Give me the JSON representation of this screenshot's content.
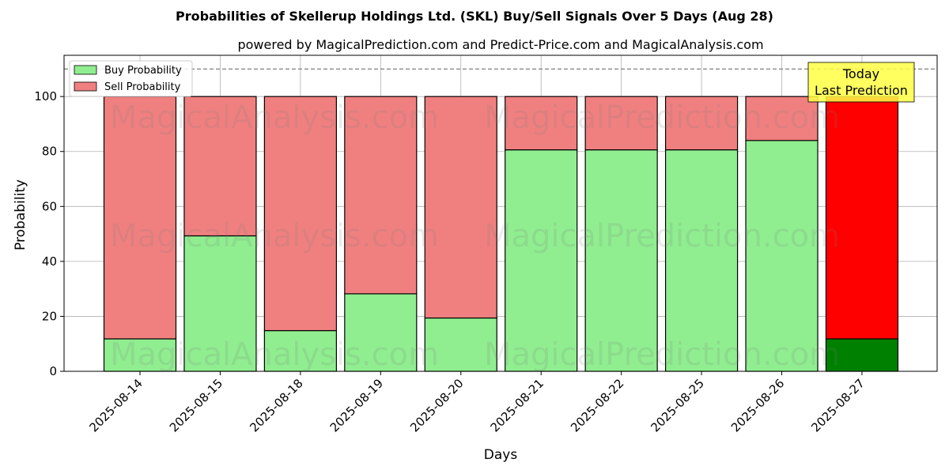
{
  "chart_data": {
    "type": "bar",
    "stacked": true,
    "title": "Probabilities of Skellerup Holdings Ltd. (SKL) Buy/Sell Signals Over 5 Days (Aug 28)",
    "subtitle": "powered by MagicalPrediction.com and Predict-Price.com and MagicalAnalysis.com",
    "xlabel": "Days",
    "ylabel": "Probability",
    "ylim": [
      0,
      115
    ],
    "yticks": [
      0,
      20,
      40,
      60,
      80,
      100
    ],
    "grid": true,
    "legend_position": "top-left",
    "reference_line": 110,
    "categories": [
      "2025-08-14",
      "2025-08-15",
      "2025-08-18",
      "2025-08-19",
      "2025-08-20",
      "2025-08-21",
      "2025-08-22",
      "2025-08-25",
      "2025-08-26",
      "2025-08-27"
    ],
    "series": [
      {
        "name": "Buy Probability",
        "color": "#90ee90",
        "highlight_color": "#008000",
        "values": [
          11.8,
          49.3,
          14.8,
          28.2,
          19.4,
          80.6,
          80.6,
          80.6,
          84.0,
          11.8
        ]
      },
      {
        "name": "Sell Probability",
        "color": "#f08080",
        "highlight_color": "#ff0000",
        "values": [
          88.2,
          50.7,
          85.2,
          71.8,
          80.6,
          19.4,
          19.4,
          19.4,
          16.0,
          88.2
        ]
      }
    ],
    "highlight_index": 9,
    "annotation": {
      "lines": [
        "Today",
        "Last Prediction"
      ],
      "background": "#ffff44"
    },
    "watermarks": [
      "MagicalAnalysis.com",
      "MagicalPrediction.com"
    ]
  }
}
